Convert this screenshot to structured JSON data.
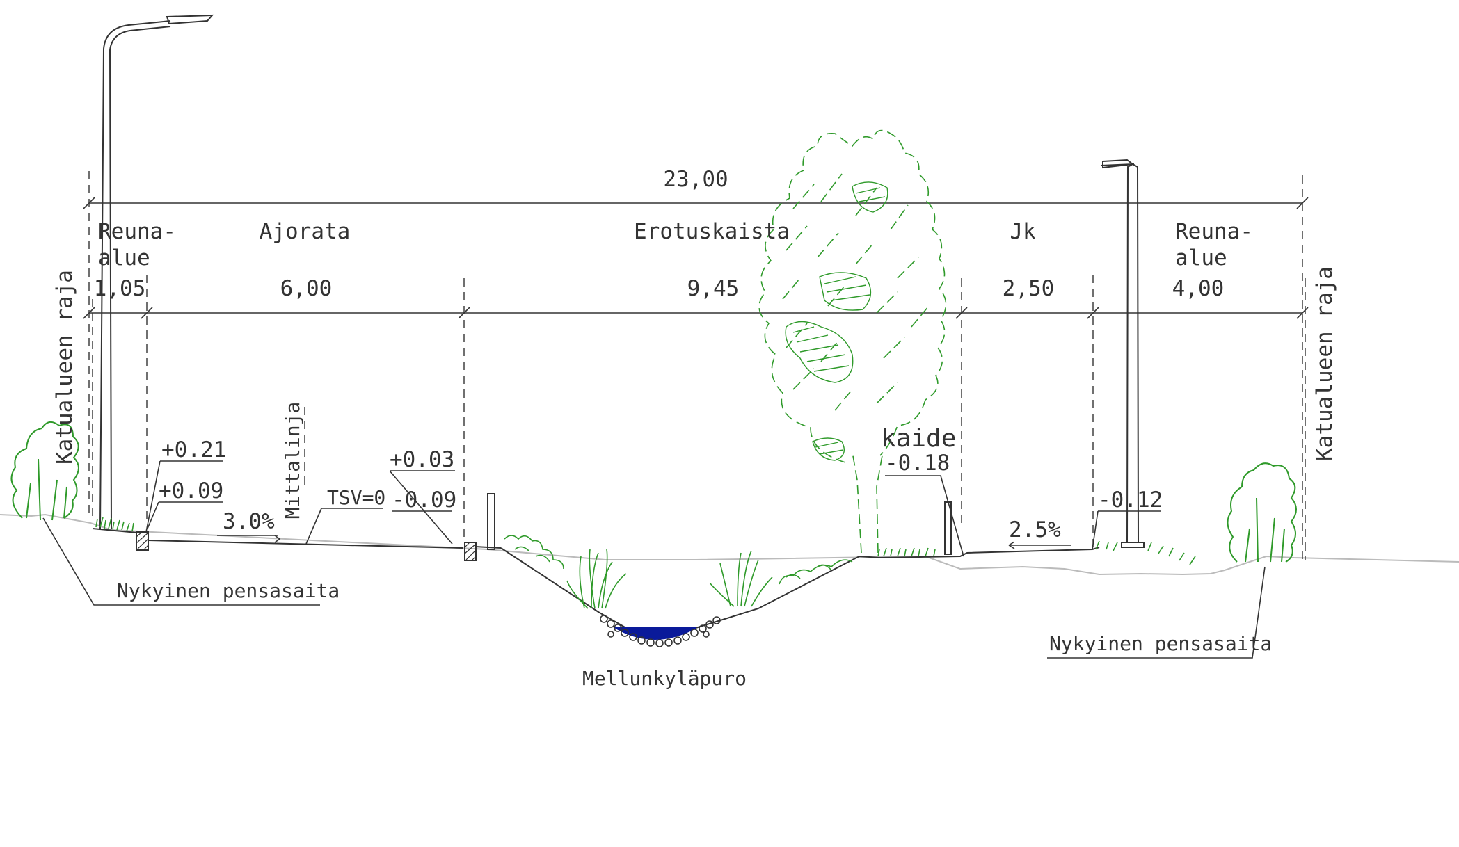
{
  "dimensions": {
    "total": "23,00",
    "segments": [
      "1,05",
      "6,00",
      "9,45",
      "2,50",
      "4,00"
    ]
  },
  "zones": {
    "reuna_left_1": "Reuna-",
    "reuna_left_2": "alue",
    "ajorata": "Ajorata",
    "erotuskaista": "Erotuskaista",
    "jk": "Jk",
    "reuna_right_1": "Reuna-",
    "reuna_right_2": "alue"
  },
  "boundary": {
    "left": "Katualueen raja",
    "right": "Katualueen raja"
  },
  "elevations": {
    "left_curb_top": "+0.21",
    "left_curb_bottom": "+0.09",
    "median_curb_top": "+0.03",
    "median_curb_bottom": "-0.09",
    "railing_level": "-0.18",
    "walkway_edge": "-0.12",
    "reference": "TSV=0"
  },
  "slopes": {
    "carriageway": "3.0%",
    "walkway": "2.5%"
  },
  "labels": {
    "measure_line": "Mittalinja",
    "railing": "kaide",
    "creek": "Mellunkyläpuro",
    "hedge_left": "Nykyinen pensasaita",
    "hedge_right": "Nykyinen pensasaita"
  },
  "colors": {
    "line": "#333333",
    "vegetation": "#2f9a2a",
    "water": "#0a1a9a",
    "ground": "#bbbbbb"
  }
}
